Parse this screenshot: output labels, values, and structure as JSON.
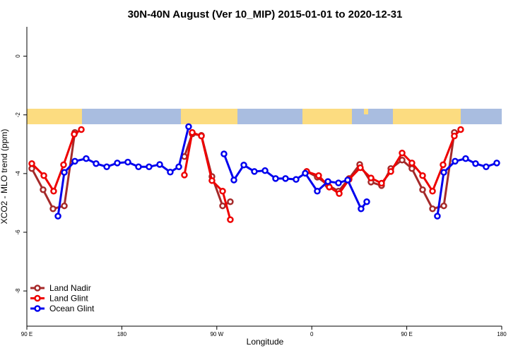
{
  "chart_data": {
    "type": "line",
    "title": "30N-40N August (Ver 10_MIP)   2015-01-01 to 2020-12-31",
    "x_label": "Longitude",
    "y_label": "XCO2 - MLO trend (ppm)",
    "xlim": [
      90,
      540
    ],
    "ylim": [
      -9.2,
      1.0
    ],
    "xticks": [
      {
        "value": 90,
        "label": "90 E"
      },
      180,
      {
        "value": 270,
        "label": "90 W"
      },
      {
        "value": 360,
        "label": "0"
      },
      {
        "value": 450,
        "label": "90 E"
      },
      {
        "value": 540,
        "label": "180"
      }
    ],
    "yticks": [
      0,
      -2,
      -4,
      -6,
      -8
    ],
    "legend": "bottom-left",
    "series": [
      {
        "name": "Land Nadir",
        "color": "#a52a2a",
        "x": [
          94.7,
          105.4,
          114.8,
          125.5,
          135.5,
          190,
          239.3,
          246.7,
          255.4,
          265.4,
          275.5,
          282.8,
          320,
          355.2,
          365.2,
          375.3,
          385.3,
          395.3,
          405.4,
          416.1,
          426.1,
          434.9,
          445.6,
          454.9,
          465,
          474.4,
          485.1,
          495.1
        ],
        "values": [
          -3.83,
          -4.55,
          -5.2,
          -5.1,
          -2.6,
          null,
          -3.42,
          -2.65,
          -2.7,
          -4.1,
          -5.1,
          -4.96,
          null,
          -3.93,
          -4.12,
          -4.39,
          -4.6,
          -4.17,
          -3.69,
          -4.29,
          -4.41,
          -3.83,
          -3.54,
          -3.83,
          -4.55,
          -5.2,
          -5.1,
          -2.6
        ]
      },
      {
        "name": "Land Glint",
        "color": "#ee0000",
        "x": [
          94.7,
          106.1,
          115.4,
          124.8,
          134.9,
          141.6,
          190,
          239.3,
          246.7,
          255.4,
          265.4,
          275.5,
          282.8,
          320,
          355.2,
          366.5,
          376.6,
          386,
          395.3,
          406,
          416.1,
          426.1,
          434.9,
          445.6,
          454.9,
          465,
          474.4,
          484.4,
          495.1,
          501.1
        ],
        "values": [
          -3.66,
          -4.07,
          -4.6,
          -3.7,
          -2.66,
          -2.5,
          null,
          -4.05,
          -2.6,
          -2.72,
          -4.24,
          -4.6,
          -5.57,
          null,
          -3.93,
          -4.07,
          -4.46,
          -4.68,
          -4.2,
          -3.8,
          -4.15,
          -4.33,
          -3.93,
          -3.3,
          -3.64,
          -4.07,
          -4.6,
          -3.7,
          -2.72,
          -2.5
        ]
      },
      {
        "name": "Ocean Glint",
        "color": "#0000ee",
        "x": [
          119.5,
          125.5,
          135.5,
          146.2,
          155.6,
          165.7,
          175.7,
          185.7,
          195.8,
          205.8,
          215.9,
          225.9,
          234,
          243.3,
          260,
          276.8,
          286.2,
          295.6,
          305.6,
          315.7,
          325.7,
          335.1,
          345.1,
          353.8,
          365.2,
          375.3,
          385.3,
          394,
          406.7,
          412.1,
          450,
          479,
          485.1,
          495.8,
          505.8,
          515.2,
          525.2,
          535.3
        ],
        "values": [
          -5.45,
          -3.96,
          -3.58,
          -3.49,
          -3.66,
          -3.77,
          -3.64,
          -3.61,
          -3.77,
          -3.77,
          -3.69,
          -3.95,
          -3.77,
          -2.4,
          null,
          -3.33,
          -4.22,
          -3.71,
          -3.93,
          -3.9,
          -4.17,
          -4.17,
          -4.2,
          -3.99,
          -4.6,
          -4.27,
          -4.32,
          -4.22,
          -5.2,
          -4.96,
          null,
          -5.45,
          -3.96,
          -3.58,
          -3.49,
          -3.66,
          -3.77,
          -3.64
        ]
      }
    ]
  }
}
